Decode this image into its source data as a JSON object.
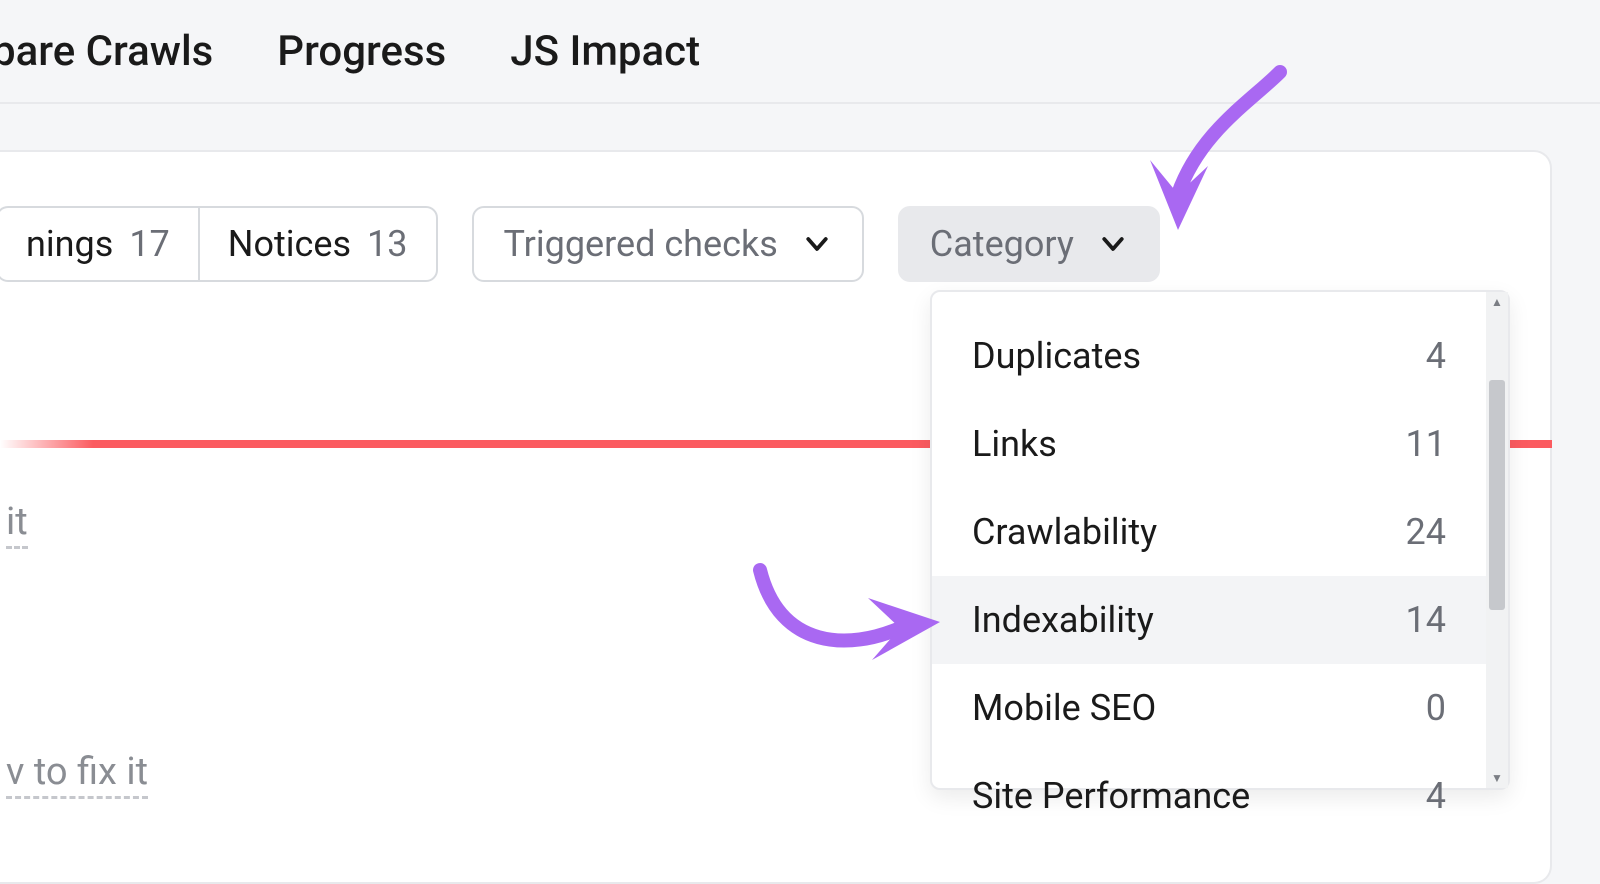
{
  "colors": {
    "accent_arrow": "#a968f2",
    "redline": "#fb5b60",
    "text_primary": "#1a1a1a",
    "text_muted": "#6b6e76",
    "bg_page": "#f5f6f8",
    "bg_card": "#ffffff",
    "border": "#e8e9ec",
    "pill_border": "#d7dade",
    "dd_hover": "#f3f4f6",
    "scroll_thumb": "#c6c8cc"
  },
  "tabs": {
    "compare_crawls": "pare Crawls",
    "progress": "Progress",
    "js_impact": "JS Impact"
  },
  "filters": {
    "warnings_label": "nings",
    "warnings_count": "17",
    "notices_label": "Notices",
    "notices_count": "13",
    "triggered_label": "Triggered checks",
    "category_label": "Category"
  },
  "ghost": {
    "it": "it",
    "fix": "v to fix it"
  },
  "dropdown": {
    "items": [
      {
        "label": "Duplicates",
        "count": "4",
        "hover": false
      },
      {
        "label": "Links",
        "count": "11",
        "hover": false
      },
      {
        "label": "Crawlability",
        "count": "24",
        "hover": false
      },
      {
        "label": "Indexability",
        "count": "14",
        "hover": true
      },
      {
        "label": "Mobile SEO",
        "count": "0",
        "hover": false
      },
      {
        "label": "Site Performance",
        "count": "4",
        "hover": false
      }
    ]
  }
}
